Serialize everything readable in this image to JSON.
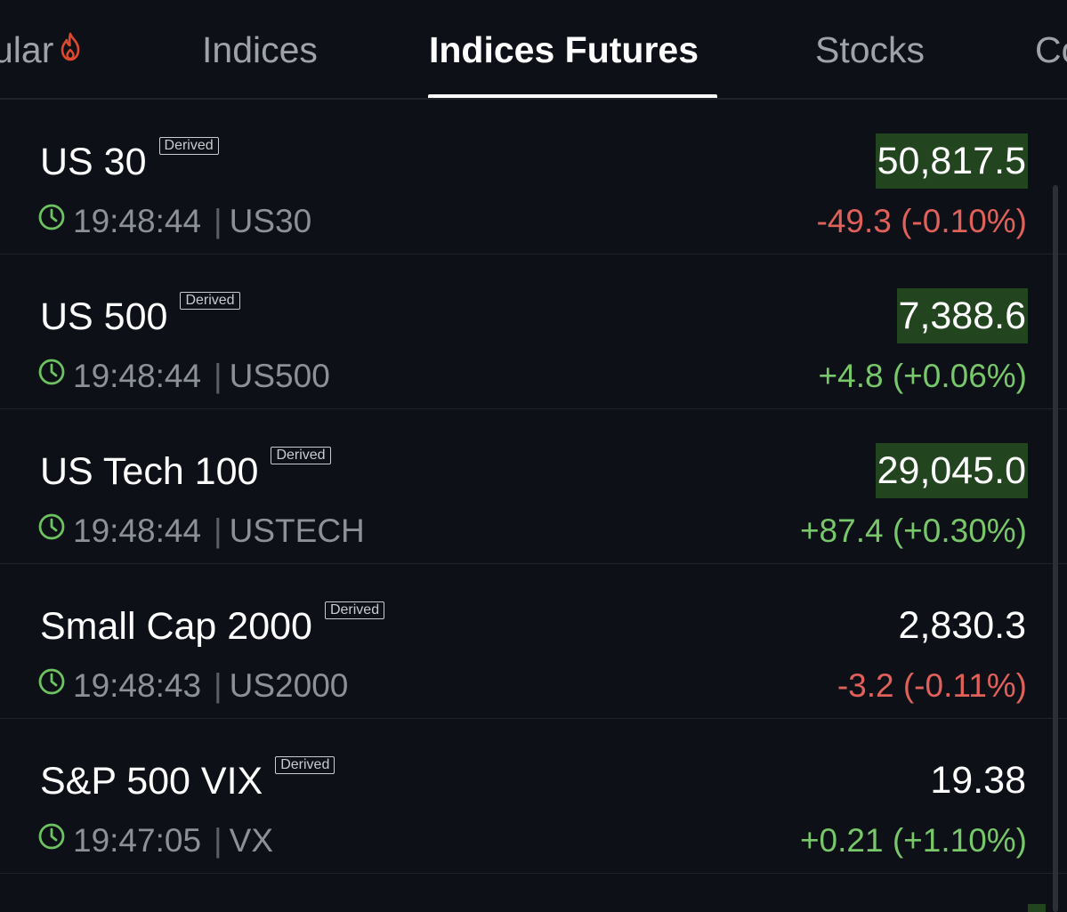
{
  "tabs": [
    {
      "label": "ular",
      "icon": "fire-icon"
    },
    {
      "label": "Indices"
    },
    {
      "label": "Indices Futures",
      "active": true
    },
    {
      "label": "Stocks"
    },
    {
      "label": "Co"
    }
  ],
  "badge_label": "Derived",
  "rows": [
    {
      "name": "US 30",
      "time": "19:48:44",
      "symbol": "US30",
      "price": "50,817.5",
      "change": "-49.3 (-0.10%)",
      "direction": "neg",
      "flash": true
    },
    {
      "name": "US 500",
      "time": "19:48:44",
      "symbol": "US500",
      "price": "7,388.6",
      "change": "+4.8 (+0.06%)",
      "direction": "pos",
      "flash": true
    },
    {
      "name": "US Tech 100",
      "time": "19:48:44",
      "symbol": "USTECH",
      "price": "29,045.0",
      "change": "+87.4 (+0.30%)",
      "direction": "pos",
      "flash": true
    },
    {
      "name": "Small Cap 2000",
      "time": "19:48:43",
      "symbol": "US2000",
      "price": "2,830.3",
      "change": "-3.2 (-0.11%)",
      "direction": "neg",
      "flash": false
    },
    {
      "name": "S&P 500 VIX",
      "time": "19:47:05",
      "symbol": "VX",
      "price": "19.38",
      "change": "+0.21 (+1.10%)",
      "direction": "pos",
      "flash": false
    }
  ],
  "colors": {
    "background": "#0d1117",
    "positive": "#78c76a",
    "negative": "#e0605a",
    "price_flash": "#22451f",
    "clock": "#6cc35f",
    "fire": "#e0482e"
  }
}
